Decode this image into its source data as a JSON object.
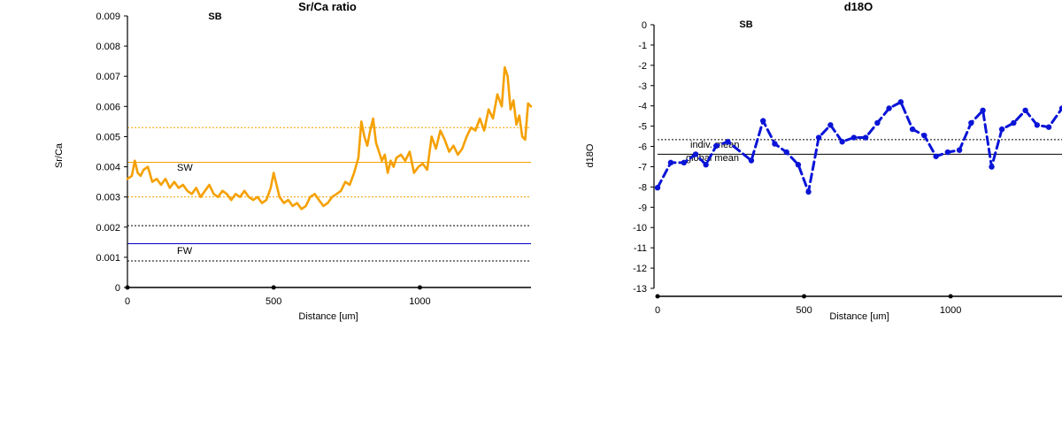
{
  "colors": {
    "srca_line": "#F5A000",
    "sw_line": "#F5A000",
    "fw_line": "#0000CC",
    "d18o_line": "#0A14D6",
    "axis": "#000000",
    "ref_dotted": "#000000"
  },
  "chart_data": [
    {
      "type": "line",
      "title": "Sr/Ca ratio",
      "annotation": "SB",
      "xlabel": "Distance [um]",
      "ylabel": "Sr/Ca",
      "xlim": [
        0,
        1380
      ],
      "ylim": [
        0,
        0.009
      ],
      "xticks": [
        "0",
        "500",
        "1000"
      ],
      "xtick_values": [
        0,
        500,
        1000
      ],
      "yticks": [
        "0",
        "0.001",
        "0.002",
        "0.003",
        "0.004",
        "0.005",
        "0.006",
        "0.007",
        "0.008",
        "0.009"
      ],
      "ytick_values": [
        0,
        0.001,
        0.002,
        0.003,
        0.004,
        0.005,
        0.006,
        0.007,
        0.008,
        0.009
      ],
      "grid": false,
      "reference_lines": [
        {
          "label": "SW",
          "y": 0.00415,
          "style": "solid",
          "color": "#F5A000"
        },
        {
          "label": "",
          "y": 0.0053,
          "style": "dotted",
          "color": "#F5A000"
        },
        {
          "label": "",
          "y": 0.003,
          "style": "dotted",
          "color": "#F5A000"
        },
        {
          "label": "FW",
          "y": 0.00145,
          "style": "solid",
          "color": "#0000CC"
        },
        {
          "label": "",
          "y": 0.00205,
          "style": "dotted",
          "color": "#000000"
        },
        {
          "label": "",
          "y": 0.00088,
          "style": "dotted",
          "color": "#000000"
        }
      ],
      "series": [
        {
          "x": [
            0,
            15,
            25,
            35,
            45,
            55,
            70,
            85,
            100,
            115,
            130,
            145,
            160,
            175,
            190,
            205,
            220,
            235,
            250,
            265,
            280,
            295,
            310,
            325,
            340,
            355,
            370,
            385,
            400,
            415,
            430,
            445,
            460,
            475,
            490,
            500,
            510,
            520,
            535,
            550,
            565,
            580,
            595,
            610,
            625,
            640,
            655,
            670,
            685,
            700,
            715,
            730,
            745,
            760,
            775,
            790,
            800,
            810,
            820,
            830,
            840,
            850,
            860,
            870,
            880,
            890,
            900,
            910,
            920,
            935,
            950,
            965,
            980,
            995,
            1010,
            1025,
            1040,
            1055,
            1070,
            1085,
            1100,
            1115,
            1130,
            1145,
            1160,
            1175,
            1190,
            1205,
            1220,
            1235,
            1250,
            1265,
            1280,
            1290,
            1300,
            1310,
            1320,
            1330,
            1340,
            1350,
            1360,
            1370,
            1380
          ],
          "values": [
            0.0036,
            0.0037,
            0.0042,
            0.0038,
            0.0037,
            0.0039,
            0.004,
            0.0035,
            0.0036,
            0.0034,
            0.0036,
            0.0033,
            0.0035,
            0.0033,
            0.0034,
            0.0032,
            0.0031,
            0.0033,
            0.003,
            0.0032,
            0.0034,
            0.0031,
            0.003,
            0.0032,
            0.0031,
            0.0029,
            0.0031,
            0.003,
            0.0032,
            0.003,
            0.0029,
            0.003,
            0.0028,
            0.0029,
            0.0033,
            0.0038,
            0.0034,
            0.003,
            0.0028,
            0.0029,
            0.0027,
            0.0028,
            0.0026,
            0.0027,
            0.003,
            0.0031,
            0.0029,
            0.0027,
            0.0028,
            0.003,
            0.0031,
            0.0032,
            0.0035,
            0.0034,
            0.0038,
            0.0043,
            0.0055,
            0.005,
            0.0047,
            0.0052,
            0.0056,
            0.0048,
            0.0045,
            0.0042,
            0.0044,
            0.0038,
            0.0042,
            0.004,
            0.0043,
            0.0044,
            0.0042,
            0.0045,
            0.0038,
            0.004,
            0.0041,
            0.0039,
            0.005,
            0.0046,
            0.0052,
            0.0049,
            0.0045,
            0.0047,
            0.0044,
            0.0046,
            0.005,
            0.0053,
            0.0052,
            0.0056,
            0.0052,
            0.0059,
            0.0056,
            0.0064,
            0.006,
            0.0073,
            0.007,
            0.0059,
            0.0062,
            0.0054,
            0.0057,
            0.005,
            0.0049,
            0.0061,
            0.006
          ]
        }
      ]
    },
    {
      "type": "line",
      "title": "d18O",
      "annotation": "SB",
      "xlabel": "Distance [um]",
      "ylabel": "d18O",
      "xlim": [
        0,
        1380
      ],
      "ylim": [
        -13,
        0
      ],
      "xticks": [
        "0",
        "500",
        "1000"
      ],
      "xtick_values": [
        0,
        500,
        1000
      ],
      "yticks": [
        "0",
        "-1",
        "-2",
        "-3",
        "-4",
        "-5",
        "-6",
        "-7",
        "-8",
        "-9",
        "-10",
        "-11",
        "-12",
        "-13"
      ],
      "ytick_values": [
        0,
        -1,
        -2,
        -3,
        -4,
        -5,
        -6,
        -7,
        -8,
        -9,
        -10,
        -11,
        -12,
        -13
      ],
      "grid": false,
      "reference_lines": [
        {
          "label": "indiv. mean",
          "y": -5.5,
          "style": "dotted",
          "color": "#000000"
        },
        {
          "label": "global mean",
          "y": -6.2,
          "style": "solid",
          "color": "#000000"
        }
      ],
      "series": [
        {
          "x": [
            0,
            45,
            90,
            130,
            165,
            200,
            240,
            320,
            360,
            400,
            440,
            480,
            515,
            550,
            590,
            630,
            670,
            710,
            750,
            790,
            830,
            870,
            910,
            950,
            990,
            1030,
            1070,
            1110,
            1140,
            1175,
            1215,
            1255,
            1295,
            1335,
            1380
          ],
          "values": [
            -7.8,
            -6.6,
            -6.6,
            -6.2,
            -6.7,
            -5.8,
            -5.6,
            -6.5,
            -4.6,
            -5.7,
            -6.1,
            -6.7,
            -8.0,
            -5.4,
            -4.8,
            -5.6,
            -5.4,
            -5.4,
            -4.7,
            -4.0,
            -3.7,
            -5.0,
            -5.3,
            -6.3,
            -6.1,
            -6.0,
            -4.7,
            -4.1,
            -6.8,
            -5.0,
            -4.7,
            -4.1,
            -4.8,
            -4.9,
            -4.0
          ]
        }
      ]
    }
  ]
}
